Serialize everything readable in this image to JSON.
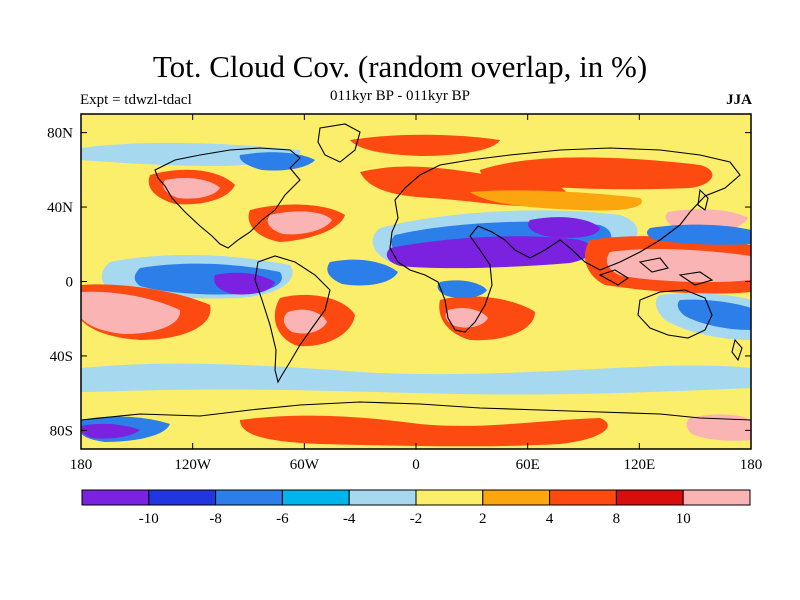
{
  "header": {
    "title": "Tot. Cloud Cov. (random overlap, in %)",
    "subtitle": "011kyr BP - 011kyr BP",
    "left_label": "Expt = tdwzl-tdacl",
    "right_label": "JJA"
  },
  "axes": {
    "y_ticks": [
      {
        "label": "80N",
        "value": 80
      },
      {
        "label": "40N",
        "value": 40
      },
      {
        "label": "0",
        "value": 0
      },
      {
        "label": "40S",
        "value": -40
      },
      {
        "label": "80S",
        "value": -80
      }
    ],
    "x_ticks": [
      {
        "label": "180",
        "value": -180
      },
      {
        "label": "120W",
        "value": -120
      },
      {
        "label": "60W",
        "value": -60
      },
      {
        "label": "0",
        "value": 0
      },
      {
        "label": "60E",
        "value": 60
      },
      {
        "label": "120E",
        "value": 120
      },
      {
        "label": "180",
        "value": 180
      }
    ]
  },
  "colorbar": {
    "colors": [
      "#7a22e0",
      "#2136e0",
      "#2c7ee8",
      "#00b5ee",
      "#a6d8f0",
      "#fbee6a",
      "#fba50f",
      "#fc4a10",
      "#d80d0d",
      "#fbb4b4"
    ],
    "labels": [
      "-10",
      "-8",
      "-6",
      "-4",
      "-2",
      "2",
      "4",
      "8",
      "10"
    ]
  },
  "map": {
    "background_color": "#fbee6a",
    "coastline_color": "#000000",
    "lon_range": [
      -180,
      180
    ],
    "lat_range": [
      -90,
      90
    ]
  }
}
